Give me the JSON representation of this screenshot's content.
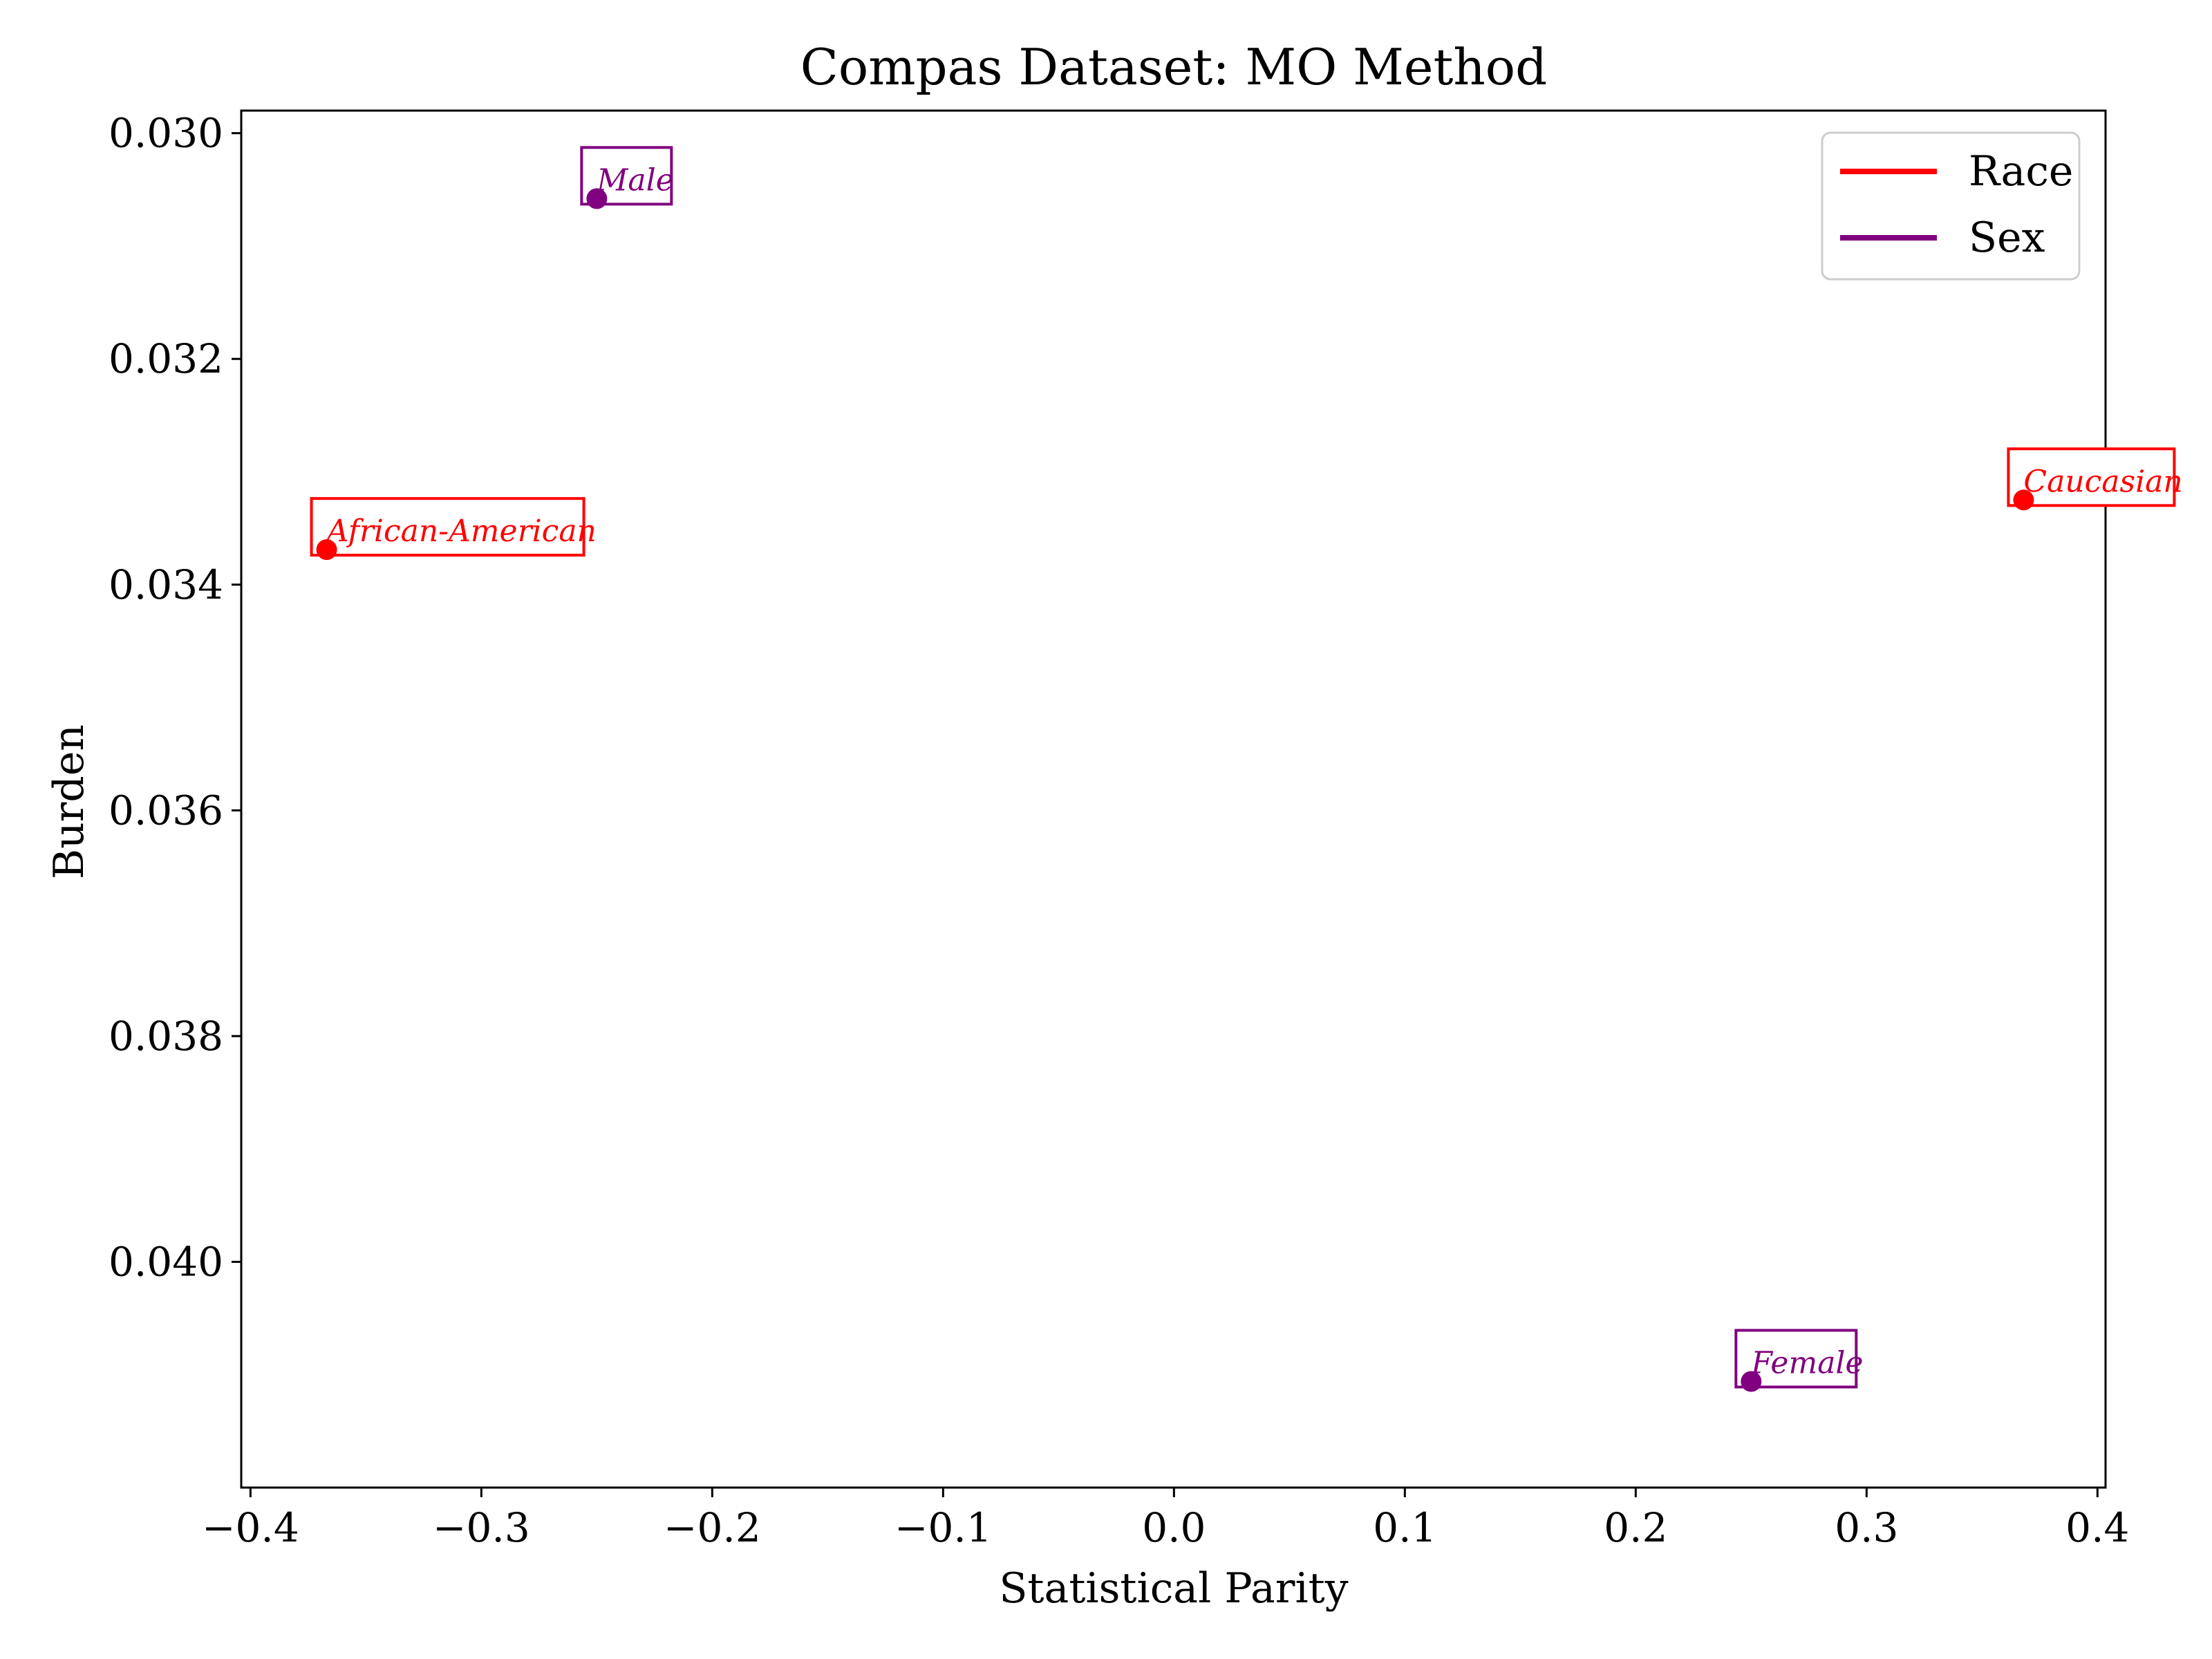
{
  "chart_data": {
    "type": "scatter",
    "title": "Compas Dataset: MO Method",
    "xlabel": "Statistical Parity",
    "ylabel": "Burden",
    "xlim": [
      -0.404,
      0.4035
    ],
    "ylim": [
      0.0298,
      0.042
    ],
    "y_inverted": true,
    "xticks": [
      -0.4,
      -0.3,
      -0.2,
      -0.1,
      0.0,
      0.1,
      0.2,
      0.3,
      0.4
    ],
    "xtick_labels": [
      "−0.4",
      "−0.3",
      "−0.2",
      "−0.1",
      "0.0",
      "0.1",
      "0.2",
      "0.3",
      "0.4"
    ],
    "yticks": [
      0.03,
      0.032,
      0.034,
      0.036,
      0.038,
      0.04
    ],
    "ytick_labels": [
      "0.030",
      "0.032",
      "0.034",
      "0.036",
      "0.038",
      "0.040"
    ],
    "grid": false,
    "legend_position": "top-right",
    "legend": [
      {
        "label": "Race",
        "color": "#ff0000"
      },
      {
        "label": "Sex",
        "color": "#800080"
      }
    ],
    "points": [
      {
        "label": "African-American",
        "group": "Race",
        "x": -0.367,
        "y": 0.03369,
        "color": "#ff0000"
      },
      {
        "label": "Caucasian",
        "group": "Race",
        "x": 0.368,
        "y": 0.03325,
        "color": "#ff0000"
      },
      {
        "label": "Male",
        "group": "Sex",
        "x": -0.25,
        "y": 0.03058,
        "color": "#800080"
      },
      {
        "label": "Female",
        "group": "Sex",
        "x": 0.25,
        "y": 0.04106,
        "color": "#800080"
      }
    ]
  }
}
